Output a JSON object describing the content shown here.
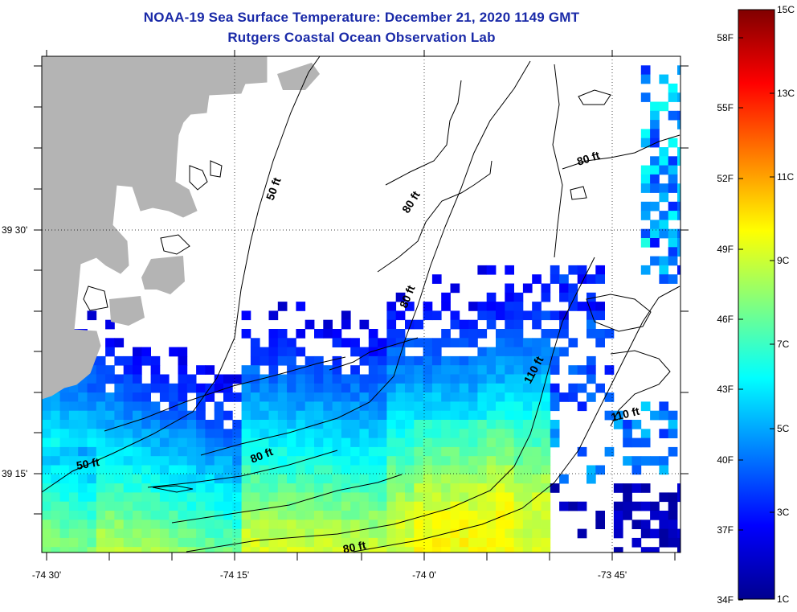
{
  "title": {
    "line1": "NOAA-19 Sea Surface Temperature:  December 21, 2020 1149 GMT",
    "line2": "Rutgers Coastal Ocean Observation Lab"
  },
  "colors": {
    "land": "#b4b4b4",
    "cloud_mask": "#ffffff",
    "title": "#1a2aa8",
    "contour": "#000000",
    "colormap": "jet"
  },
  "axes": {
    "x_ticks": [
      "-74 30'",
      "-74 15'",
      "-74 0'",
      "-73 45'"
    ],
    "y_ticks": [
      "39 30'",
      "39 15'"
    ],
    "grid": "dotted"
  },
  "isobaths": [
    "50 ft",
    "50 ft",
    "80 ft",
    "80 ft",
    "80 ft",
    "80 ft",
    "80 ft",
    "110 ft",
    "110 ft"
  ],
  "colorbar": {
    "range_c": [
      1,
      15
    ],
    "celsius_labels": [
      "15C",
      "13C",
      "11C",
      "9C",
      "7C",
      "5C",
      "3C",
      "1C"
    ],
    "fahrenheit_labels": [
      "58F",
      "55F",
      "52F",
      "49F",
      "46F",
      "43F",
      "40F",
      "37F",
      "34F"
    ]
  }
}
